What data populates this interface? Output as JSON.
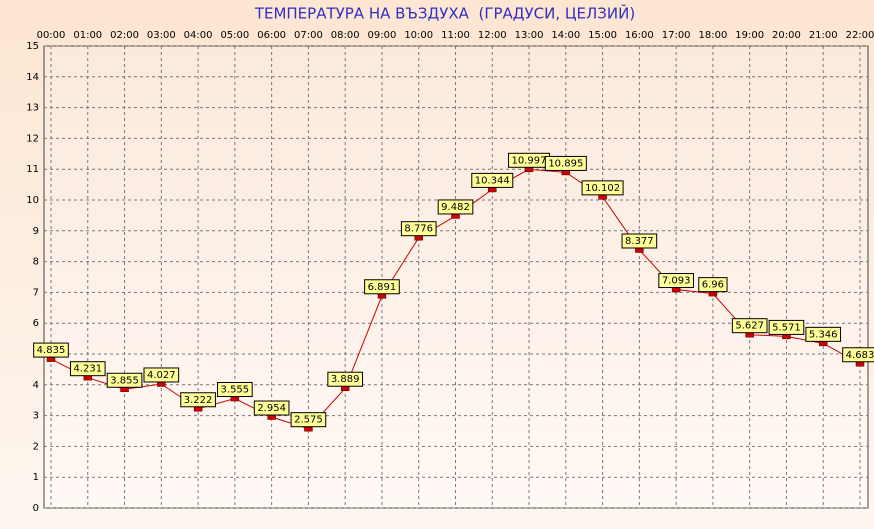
{
  "chart_data": {
    "type": "line",
    "title": "ТЕМПЕРАТУРА НА ВЪЗДУХА  (ГРАДУСИ, ЦЕЛЗИЙ)",
    "categories": [
      "00:00",
      "01:00",
      "02:00",
      "03:00",
      "04:00",
      "05:00",
      "06:00",
      "07:00",
      "08:00",
      "09:00",
      "10:00",
      "11:00",
      "12:00",
      "13:00",
      "14:00",
      "15:00",
      "16:00",
      "17:00",
      "18:00",
      "19:00",
      "20:00",
      "21:00",
      "22:00"
    ],
    "values": [
      4.835,
      4.231,
      3.855,
      4.027,
      3.222,
      3.555,
      2.954,
      2.575,
      3.889,
      6.891,
      8.776,
      9.482,
      10.344,
      10.997,
      10.895,
      10.102,
      8.377,
      7.093,
      6.96,
      5.627,
      5.571,
      5.346,
      4.683
    ],
    "color": "#cc0000",
    "ylim": [
      0,
      15
    ],
    "yticks": [
      0,
      1,
      2,
      3,
      4,
      5,
      6,
      7,
      8,
      9,
      10,
      11,
      12,
      13,
      14,
      15
    ],
    "grid": true
  }
}
